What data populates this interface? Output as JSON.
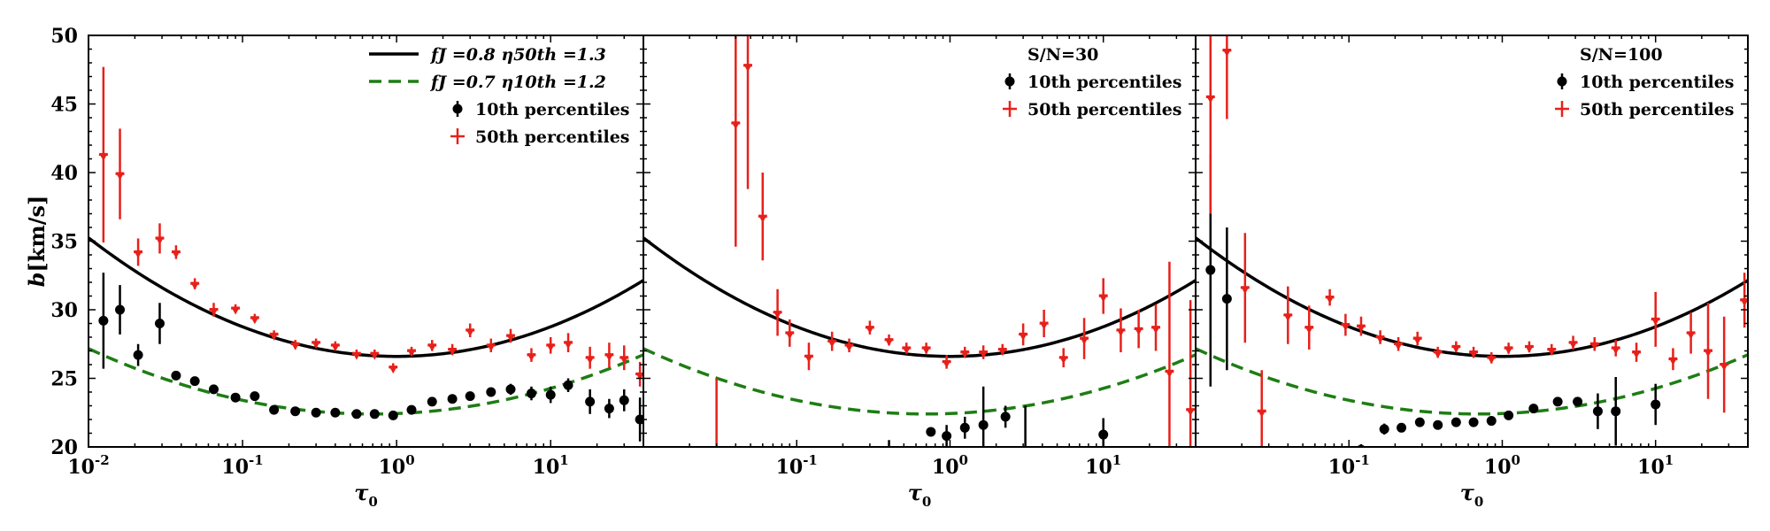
{
  "chart_data": [
    {
      "type": "scatter",
      "panel": "left",
      "xscale": "log",
      "xlim": [
        0.01,
        40
      ],
      "ylim": [
        20,
        50
      ],
      "xlabel": "τ0",
      "ylabel": "b[km/s]",
      "yticks": [
        20,
        25,
        30,
        35,
        40,
        45,
        50
      ],
      "xtick_labels": [
        "10^-2",
        "10^-1",
        "10^0",
        "10^1"
      ],
      "legend": [
        "fJ =0.8 η50th =1.3",
        "fJ =0.7 η10th =1.2",
        "10th percentiles",
        "50th percentiles"
      ],
      "curves": [
        {
          "name": "fJ =0.8 η50th =1.3",
          "style": "solid",
          "color": "#000000",
          "min_x": 1.0,
          "min_y": 26.6,
          "a": 2.16
        },
        {
          "name": "fJ =0.7 η10th =1.2",
          "style": "dashed",
          "color": "#1e7d14",
          "min_x": 0.7,
          "min_y": 22.4,
          "a": 1.4
        }
      ],
      "series": [
        {
          "name": "10th percentiles",
          "marker": "dot",
          "color": "#000000",
          "points": [
            [
              0.0125,
              29.2,
              3.5
            ],
            [
              0.016,
              30.0,
              1.8
            ],
            [
              0.021,
              26.7,
              0.8
            ],
            [
              0.029,
              29.0,
              1.5
            ],
            [
              0.037,
              25.2,
              0.3
            ],
            [
              0.049,
              24.8,
              0.2
            ],
            [
              0.065,
              24.2,
              0.2
            ],
            [
              0.09,
              23.6,
              0.3
            ],
            [
              0.12,
              23.7,
              0.3
            ],
            [
              0.16,
              22.7,
              0.2
            ],
            [
              0.22,
              22.6,
              0.2
            ],
            [
              0.3,
              22.5,
              0.2
            ],
            [
              0.4,
              22.5,
              0.2
            ],
            [
              0.55,
              22.4,
              0.2
            ],
            [
              0.72,
              22.4,
              0.2
            ],
            [
              0.95,
              22.3,
              0.3
            ],
            [
              1.25,
              22.7,
              0.3
            ],
            [
              1.7,
              23.3,
              0.3
            ],
            [
              2.3,
              23.5,
              0.3
            ],
            [
              3.0,
              23.7,
              0.3
            ],
            [
              4.1,
              24.0,
              0.3
            ],
            [
              5.5,
              24.2,
              0.4
            ],
            [
              7.5,
              23.9,
              0.5
            ],
            [
              10.0,
              23.8,
              0.6
            ],
            [
              13.0,
              24.5,
              0.5
            ],
            [
              18.0,
              23.3,
              0.9
            ],
            [
              24.0,
              22.8,
              0.7
            ],
            [
              30.0,
              23.4,
              0.8
            ],
            [
              38.0,
              22.0,
              1.6
            ]
          ]
        },
        {
          "name": "50th percentiles",
          "marker": "arrow",
          "color": "#e8201a",
          "points": [
            [
              0.0125,
              41.3,
              6.4
            ],
            [
              0.016,
              39.9,
              3.3
            ],
            [
              0.021,
              34.2,
              1.0
            ],
            [
              0.029,
              35.2,
              1.1
            ],
            [
              0.037,
              34.2,
              0.5
            ],
            [
              0.049,
              31.9,
              0.4
            ],
            [
              0.065,
              30.0,
              0.5
            ],
            [
              0.09,
              30.1,
              0.3
            ],
            [
              0.12,
              29.4,
              0.3
            ],
            [
              0.16,
              28.2,
              0.3
            ],
            [
              0.22,
              27.5,
              0.3
            ],
            [
              0.3,
              27.6,
              0.3
            ],
            [
              0.4,
              27.4,
              0.3
            ],
            [
              0.55,
              26.8,
              0.3
            ],
            [
              0.72,
              26.8,
              0.3
            ],
            [
              0.95,
              25.8,
              0.3
            ],
            [
              1.25,
              27.0,
              0.3
            ],
            [
              1.7,
              27.4,
              0.4
            ],
            [
              2.3,
              27.1,
              0.4
            ],
            [
              3.0,
              28.5,
              0.5
            ],
            [
              4.1,
              27.4,
              0.5
            ],
            [
              5.5,
              28.1,
              0.5
            ],
            [
              7.5,
              26.7,
              0.5
            ],
            [
              10.0,
              27.4,
              0.6
            ],
            [
              13.0,
              27.6,
              0.7
            ],
            [
              18.0,
              26.5,
              0.8
            ],
            [
              24.0,
              26.7,
              0.9
            ],
            [
              30.0,
              26.5,
              0.9
            ],
            [
              38.0,
              25.3,
              0.9
            ]
          ]
        }
      ]
    },
    {
      "type": "scatter",
      "panel": "middle",
      "xscale": "log",
      "xlim": [
        0.01,
        40
      ],
      "ylim": [
        20,
        50
      ],
      "xlabel": "τ0",
      "xtick_labels": [
        "10^-1",
        "10^0",
        "10^1"
      ],
      "annotation": "S/N=30",
      "legend": [
        "10th percentiles",
        "50th percentiles"
      ],
      "curves": [
        {
          "style": "solid",
          "color": "#000000",
          "min_x": 1.0,
          "min_y": 26.6,
          "a": 2.16
        },
        {
          "style": "dashed",
          "color": "#1e7d14",
          "min_x": 0.7,
          "min_y": 22.4,
          "a": 1.4
        }
      ],
      "series": [
        {
          "name": "10th percentiles",
          "marker": "dot",
          "color": "#000000",
          "points": [
            [
              0.4,
              19.5,
              1.0
            ],
            [
              0.75,
              21.1,
              0.3
            ],
            [
              0.95,
              20.8,
              0.8
            ],
            [
              1.25,
              21.4,
              0.8
            ],
            [
              1.65,
              21.6,
              2.8
            ],
            [
              2.3,
              22.2,
              0.8
            ],
            [
              3.1,
              18.8,
              4.2
            ],
            [
              10.0,
              20.9,
              1.2
            ]
          ]
        },
        {
          "name": "50th percentiles",
          "marker": "arrow",
          "color": "#e8201a",
          "points": [
            [
              0.03,
              19.0,
              6.0
            ],
            [
              0.04,
              43.6,
              9.0
            ],
            [
              0.048,
              47.8,
              9.0
            ],
            [
              0.06,
              36.8,
              3.2
            ],
            [
              0.075,
              29.8,
              1.7
            ],
            [
              0.09,
              28.3,
              1.0
            ],
            [
              0.12,
              26.6,
              1.0
            ],
            [
              0.17,
              27.7,
              0.7
            ],
            [
              0.22,
              27.4,
              0.5
            ],
            [
              0.3,
              28.7,
              0.5
            ],
            [
              0.4,
              27.8,
              0.4
            ],
            [
              0.52,
              27.2,
              0.4
            ],
            [
              0.7,
              27.2,
              0.4
            ],
            [
              0.95,
              26.2,
              0.5
            ],
            [
              1.25,
              26.9,
              0.4
            ],
            [
              1.65,
              26.9,
              0.5
            ],
            [
              2.2,
              27.1,
              0.4
            ],
            [
              3.0,
              28.2,
              0.8
            ],
            [
              4.1,
              29.0,
              1.0
            ],
            [
              5.5,
              26.5,
              0.7
            ],
            [
              7.5,
              27.9,
              1.5
            ],
            [
              10.0,
              31.0,
              1.3
            ],
            [
              13.0,
              28.5,
              1.6
            ],
            [
              17.0,
              28.6,
              1.4
            ],
            [
              22.0,
              28.7,
              1.7
            ],
            [
              27.0,
              25.5,
              8.0
            ],
            [
              37.0,
              22.7,
              8.0
            ]
          ]
        }
      ]
    },
    {
      "type": "scatter",
      "panel": "right",
      "xscale": "log",
      "xlim": [
        0.01,
        40
      ],
      "ylim": [
        20,
        50
      ],
      "xlabel": "τ0",
      "xtick_labels": [
        "10^-1",
        "10^0",
        "10^1"
      ],
      "annotation": "S/N=100",
      "legend": [
        "10th percentiles",
        "50th percentiles"
      ],
      "curves": [
        {
          "style": "solid",
          "color": "#000000",
          "min_x": 1.0,
          "min_y": 26.6,
          "a": 2.16
        },
        {
          "style": "dashed",
          "color": "#1e7d14",
          "min_x": 0.7,
          "min_y": 22.4,
          "a": 1.4
        }
      ],
      "series": [
        {
          "name": "10th percentiles",
          "marker": "dot",
          "color": "#000000",
          "points": [
            [
              0.0125,
              32.9,
              8.5
            ],
            [
              0.016,
              30.8,
              5.2
            ],
            [
              0.12,
              19.8,
              0.4
            ],
            [
              0.17,
              21.3,
              0.4
            ],
            [
              0.22,
              21.4,
              0.3
            ],
            [
              0.29,
              21.8,
              0.3
            ],
            [
              0.38,
              21.6,
              0.3
            ],
            [
              0.5,
              21.8,
              0.3
            ],
            [
              0.65,
              21.8,
              0.3
            ],
            [
              0.85,
              21.9,
              0.3
            ],
            [
              1.1,
              22.3,
              0.3
            ],
            [
              1.6,
              22.8,
              0.3
            ],
            [
              2.3,
              23.3,
              0.3
            ],
            [
              3.1,
              23.3,
              0.3
            ],
            [
              4.2,
              22.6,
              1.3
            ],
            [
              5.5,
              22.6,
              2.5
            ],
            [
              10.0,
              23.1,
              1.5
            ]
          ]
        },
        {
          "name": "50th percentiles",
          "marker": "arrow",
          "color": "#e8201a",
          "points": [
            [
              0.0125,
              45.5,
              8.5
            ],
            [
              0.016,
              48.9,
              5.0
            ],
            [
              0.021,
              31.6,
              4.0
            ],
            [
              0.027,
              22.6,
              3.0
            ],
            [
              0.04,
              29.6,
              2.1
            ],
            [
              0.055,
              28.7,
              1.6
            ],
            [
              0.075,
              30.9,
              0.6
            ],
            [
              0.095,
              28.9,
              0.8
            ],
            [
              0.12,
              28.8,
              0.7
            ],
            [
              0.16,
              28.0,
              0.5
            ],
            [
              0.21,
              27.5,
              0.5
            ],
            [
              0.28,
              27.9,
              0.5
            ],
            [
              0.38,
              26.9,
              0.4
            ],
            [
              0.5,
              27.3,
              0.4
            ],
            [
              0.65,
              26.9,
              0.4
            ],
            [
              0.85,
              26.5,
              0.4
            ],
            [
              1.1,
              27.2,
              0.4
            ],
            [
              1.5,
              27.3,
              0.4
            ],
            [
              2.1,
              27.1,
              0.4
            ],
            [
              2.9,
              27.6,
              0.5
            ],
            [
              4.0,
              27.5,
              0.5
            ],
            [
              5.5,
              27.2,
              0.6
            ],
            [
              7.5,
              26.9,
              0.7
            ],
            [
              10.0,
              29.3,
              2.0
            ],
            [
              13.0,
              26.4,
              0.8
            ],
            [
              17.0,
              28.3,
              1.5
            ],
            [
              22.0,
              27.0,
              3.5
            ],
            [
              28.0,
              26.0,
              3.5
            ],
            [
              38.0,
              30.7,
              2.0
            ]
          ]
        }
      ]
    }
  ]
}
